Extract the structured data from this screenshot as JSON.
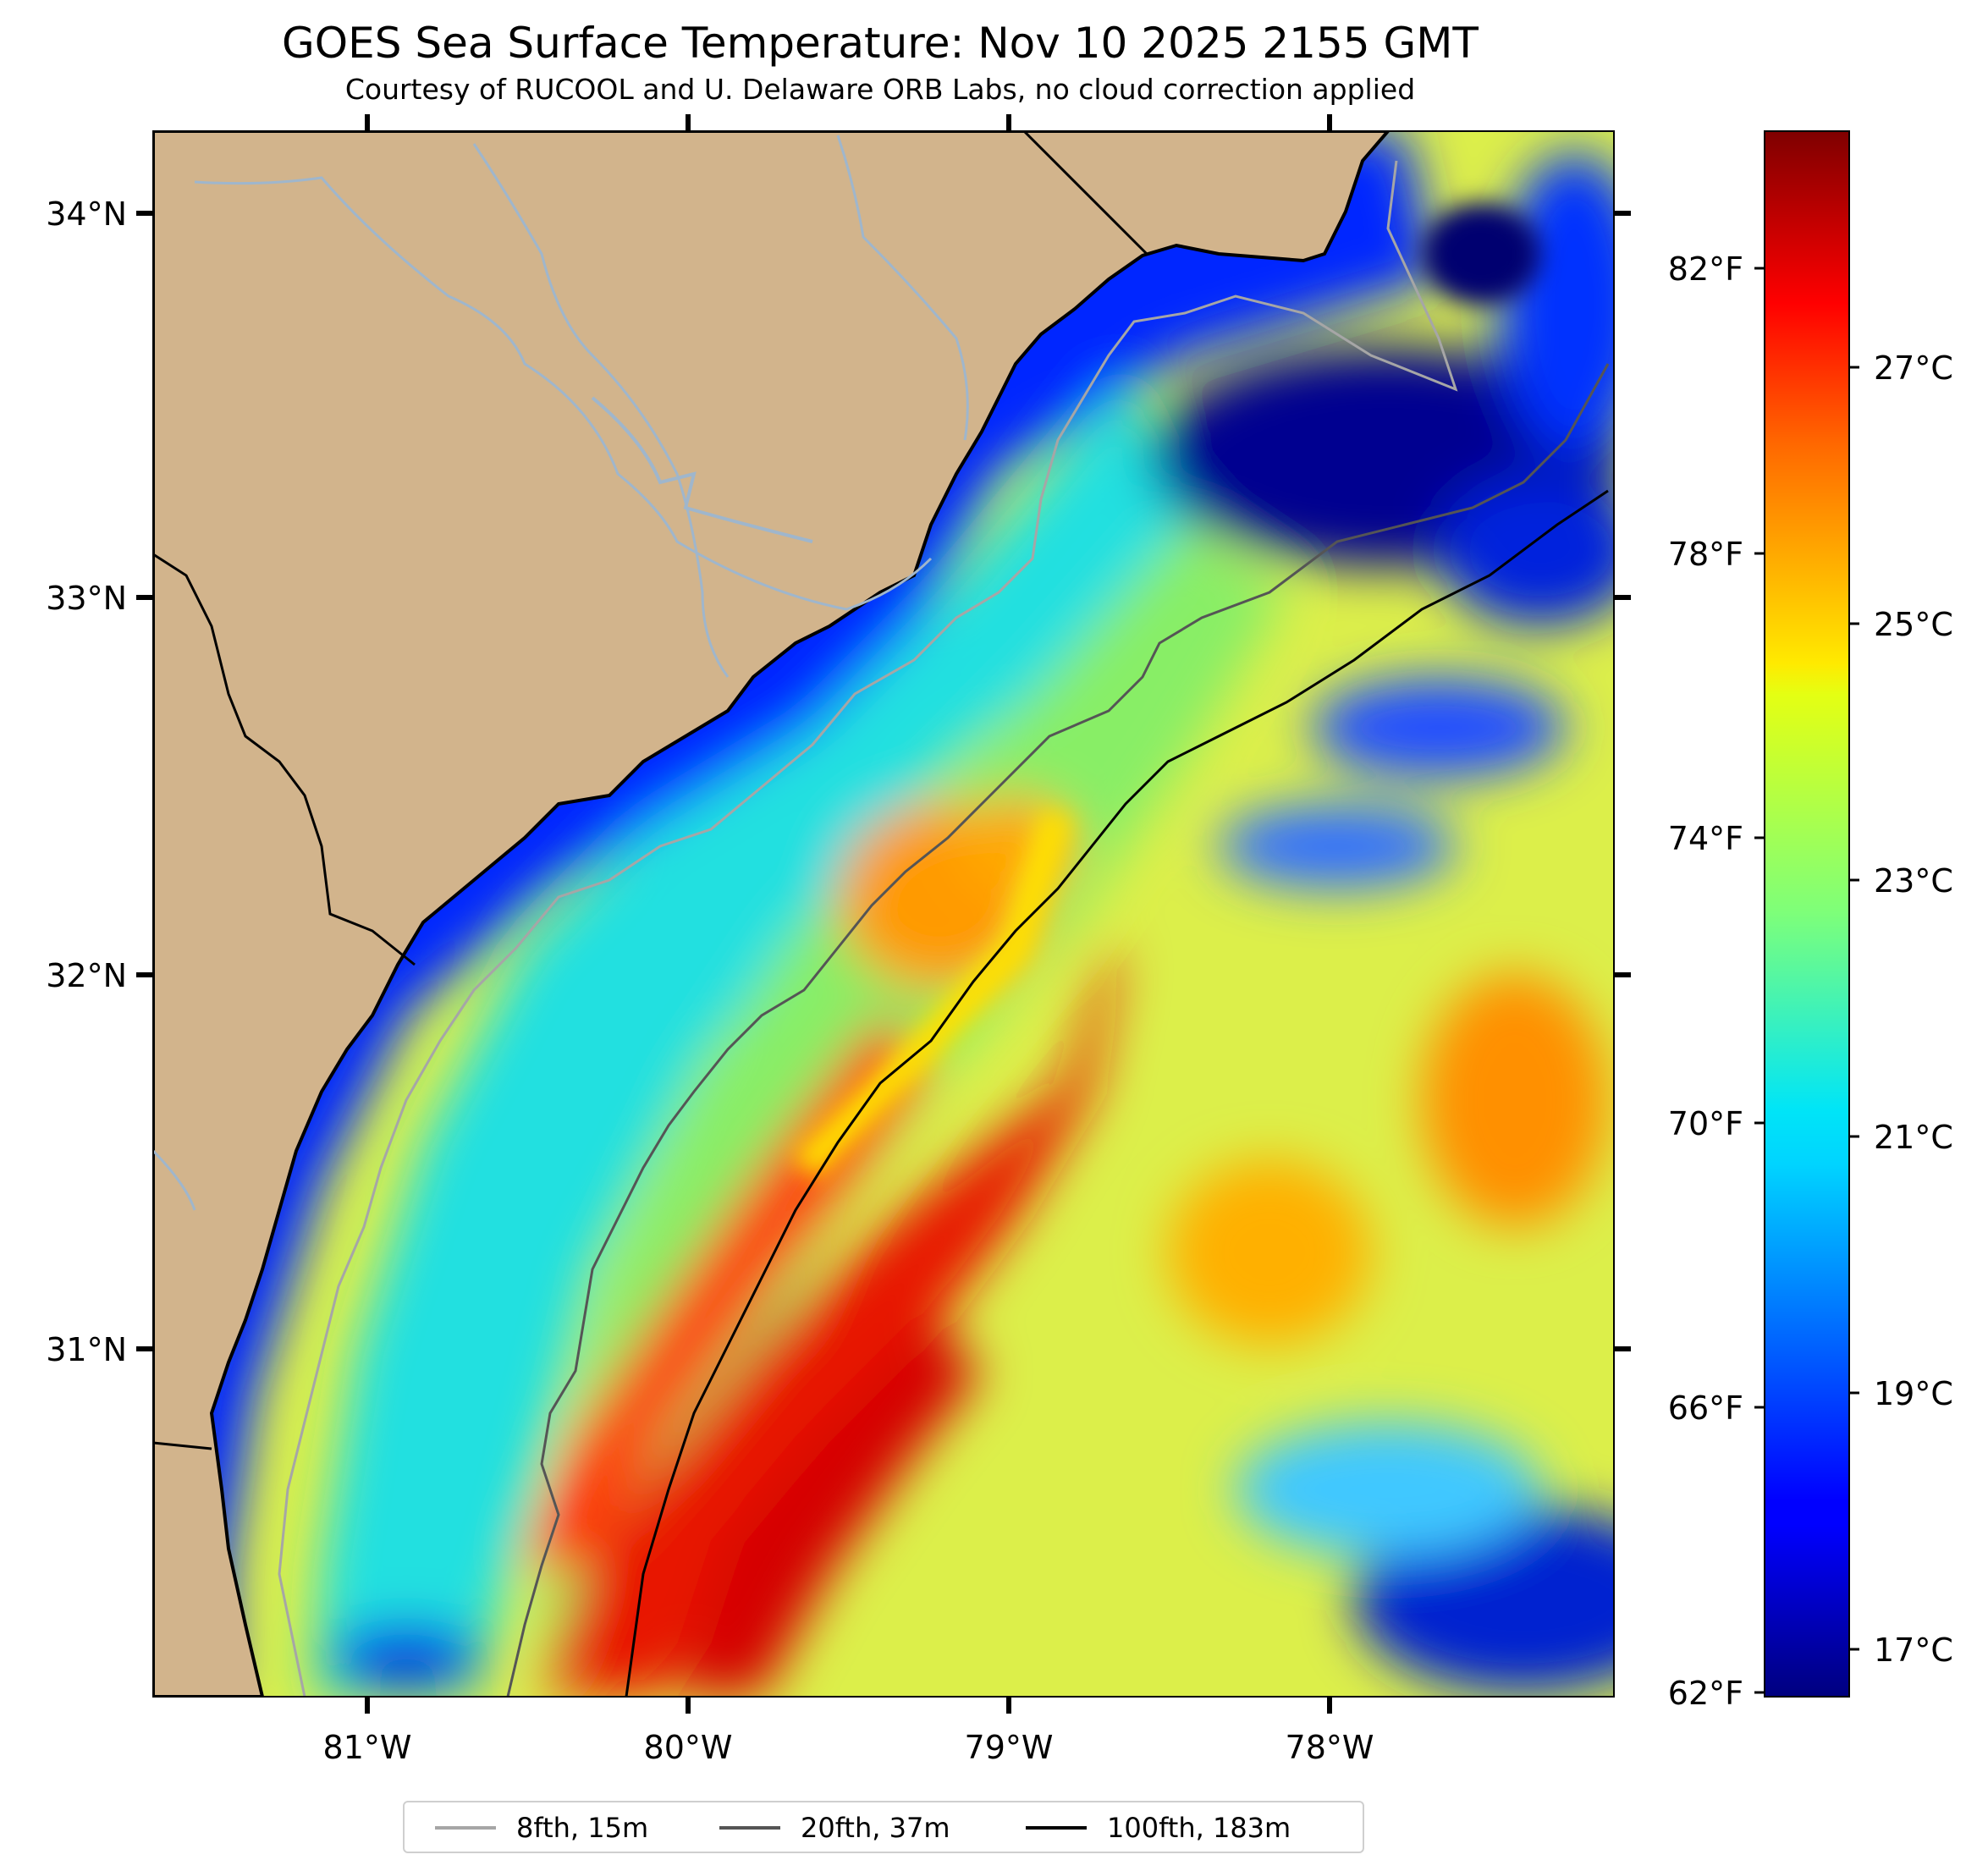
{
  "title": "GOES Sea Surface Temperature: Nov 10 2025 2155 GMT",
  "subtitle": "Courtesy of RUCOOL and U. Delaware ORB Labs, no cloud correction applied",
  "map": {
    "lon_ticks": [
      "81°W",
      "80°W",
      "79°W",
      "78°W"
    ],
    "lat_ticks": [
      "34°N",
      "33°N",
      "32°N",
      "31°N"
    ],
    "land_color": "#d2b48c",
    "coast_color": "#000000"
  },
  "colorbar": {
    "colormap": "jet",
    "fahrenheit_ticks": [
      "82°F",
      "78°F",
      "74°F",
      "70°F",
      "66°F",
      "62°F"
    ],
    "celsius_ticks": [
      "27°C",
      "25°C",
      "23°C",
      "21°C",
      "19°C",
      "17°C"
    ]
  },
  "legend": [
    {
      "label": "8fth, 15m",
      "color": "#a6a6a6"
    },
    {
      "label": "20fth, 37m",
      "color": "#555555"
    },
    {
      "label": "100fth, 183m",
      "color": "#000000"
    }
  ]
}
